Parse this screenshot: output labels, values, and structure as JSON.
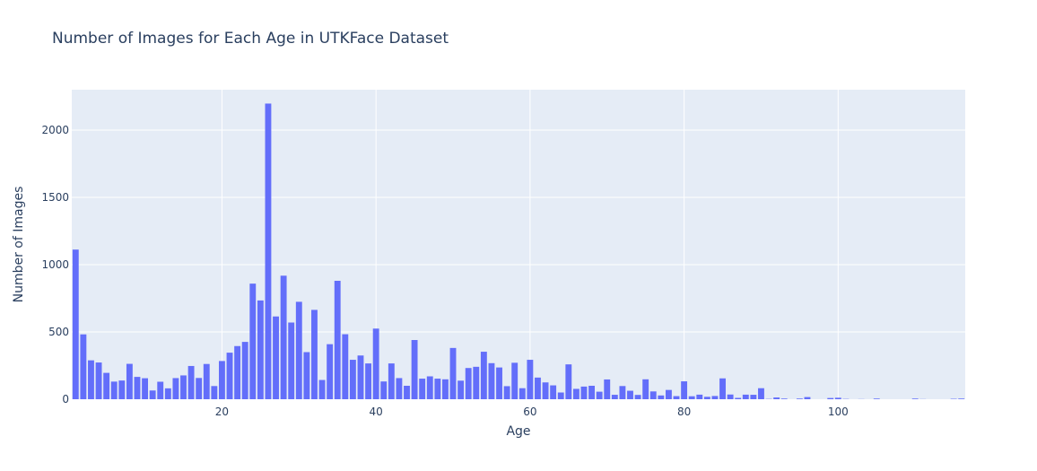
{
  "chart_data": {
    "type": "bar",
    "title": "Number of Images for Each Age in UTKFace Dataset",
    "xlabel": "Age",
    "ylabel": "Number of Images",
    "xlim": [
      0.5,
      116.5
    ],
    "ylim": [
      0,
      2300
    ],
    "x_ticks": [
      20,
      40,
      60,
      80,
      100
    ],
    "y_ticks": [
      0,
      500,
      1000,
      1500,
      2000
    ],
    "bar_color": "#636efa",
    "plot_bg": "#e5ecf6",
    "grid": true,
    "x": [
      1,
      2,
      3,
      4,
      5,
      6,
      7,
      8,
      9,
      10,
      11,
      12,
      13,
      14,
      15,
      16,
      17,
      18,
      19,
      20,
      21,
      22,
      23,
      24,
      25,
      26,
      27,
      28,
      29,
      30,
      31,
      32,
      33,
      34,
      35,
      36,
      37,
      38,
      39,
      40,
      41,
      42,
      43,
      44,
      45,
      46,
      47,
      48,
      49,
      50,
      51,
      52,
      53,
      54,
      55,
      56,
      57,
      58,
      59,
      60,
      61,
      62,
      63,
      64,
      65,
      66,
      67,
      68,
      69,
      70,
      71,
      72,
      73,
      74,
      75,
      76,
      77,
      78,
      79,
      80,
      81,
      82,
      83,
      84,
      85,
      86,
      87,
      88,
      89,
      90,
      91,
      92,
      93,
      95,
      96,
      99,
      100,
      101,
      103,
      105,
      110,
      111,
      115,
      116
    ],
    "values": [
      1112,
      482,
      289,
      273,
      196,
      131,
      139,
      263,
      166,
      156,
      65,
      130,
      81,
      157,
      177,
      247,
      158,
      262,
      98,
      284,
      346,
      395,
      426,
      859,
      734,
      2197,
      615,
      918,
      570,
      724,
      350,
      664,
      143,
      409,
      880,
      483,
      293,
      325,
      266,
      525,
      132,
      266,
      157,
      100,
      440,
      153,
      170,
      153,
      148,
      381,
      138,
      232,
      241,
      353,
      268,
      236,
      97,
      271,
      82,
      293,
      161,
      125,
      103,
      50,
      259,
      77,
      94,
      100,
      56,
      147,
      33,
      98,
      63,
      32,
      148,
      58,
      28,
      69,
      23,
      133,
      22,
      34,
      18,
      24,
      155,
      35,
      10,
      34,
      33,
      82,
      2,
      13,
      5,
      5,
      16,
      9,
      11,
      2,
      1,
      5,
      5,
      1,
      3,
      5
    ]
  }
}
